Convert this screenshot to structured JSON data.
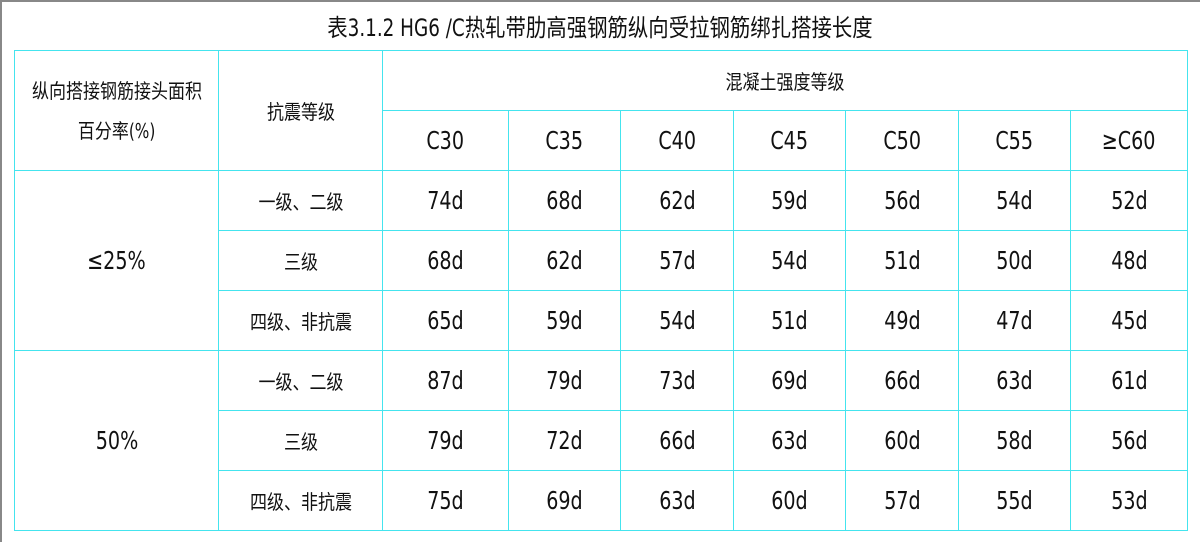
{
  "title": "表3.1.2  HG6 /C热轧带肋高强钢筋纵向受拉钢筋绑扎搭接长度",
  "header": {
    "col1_line1": "纵向搭接钢筋接头面积",
    "col1_line2": "百分率(%)",
    "col2": "抗震等级",
    "group": "混凝土强度等级",
    "grades": [
      "C30",
      "C35",
      "C40",
      "C45",
      "C50",
      "C55",
      "≥C60"
    ]
  },
  "groups": [
    {
      "rate": "≤25%",
      "rows": [
        {
          "level": "一级、二级",
          "values": [
            "74d",
            "68d",
            "62d",
            "59d",
            "56d",
            "54d",
            "52d"
          ]
        },
        {
          "level": "三级",
          "values": [
            "68d",
            "62d",
            "57d",
            "54d",
            "51d",
            "50d",
            "48d"
          ]
        },
        {
          "level": "四级、非抗震",
          "values": [
            "65d",
            "59d",
            "54d",
            "51d",
            "49d",
            "47d",
            "45d"
          ]
        }
      ]
    },
    {
      "rate": "50%",
      "rows": [
        {
          "level": "一级、二级",
          "values": [
            "87d",
            "79d",
            "73d",
            "69d",
            "66d",
            "63d",
            "61d"
          ]
        },
        {
          "level": "三级",
          "values": [
            "79d",
            "72d",
            "66d",
            "63d",
            "60d",
            "58d",
            "56d"
          ]
        },
        {
          "level": "四级、非抗震",
          "values": [
            "75d",
            "69d",
            "63d",
            "60d",
            "57d",
            "55d",
            "53d"
          ]
        }
      ]
    }
  ],
  "colors": {
    "grid": "#44e4ee",
    "frame": "#888888"
  }
}
